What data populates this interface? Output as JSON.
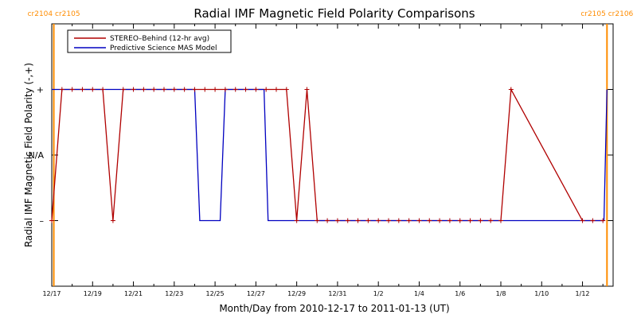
{
  "chart_data": {
    "type": "line",
    "title": "Radial IMF Magnetic Field Polarity Comparisons",
    "xlabel": "Month/Day from 2010-12-17 to 2011-01-13 (UT)",
    "ylabel": "Radial IMF Magnetic Field Polarity (-,+)",
    "xlim": [
      0,
      27.5
    ],
    "ylim": [
      -2,
      2
    ],
    "x_tick_labels": [
      "12/17",
      "12/19",
      "12/21",
      "12/23",
      "12/25",
      "12/27",
      "12/29",
      "12/31",
      "1/2",
      "1/4",
      "1/6",
      "1/8",
      "1/10",
      "1/12"
    ],
    "x_tick_values": [
      0,
      2,
      4,
      6,
      8,
      10,
      12,
      14,
      16,
      18,
      20,
      22,
      24,
      26
    ],
    "y_ticks": [
      {
        "value": 1,
        "label": "+"
      },
      {
        "value": 0,
        "label": "N/A"
      },
      {
        "value": -1,
        "label": "–"
      }
    ],
    "carrington_markers": [
      {
        "x": 0.1,
        "label": "cr2104 cr2105"
      },
      {
        "x": 27.2,
        "label": "cr2105 cr2106"
      }
    ],
    "legend_position": "top-left",
    "series": [
      {
        "name": "STEREO–Behind (12-hr avg)",
        "color": "#b00000",
        "x": [
          0.0,
          0.5,
          1.0,
          1.5,
          2.0,
          2.5,
          3.0,
          3.5,
          4.0,
          4.5,
          5.0,
          5.5,
          6.0,
          6.5,
          7.0,
          7.5,
          8.0,
          8.5,
          9.0,
          9.5,
          10.0,
          10.5,
          11.0,
          11.5,
          12.0,
          12.5,
          13.0,
          13.5,
          14.0,
          14.5,
          15.0,
          15.5,
          16.0,
          16.5,
          17.0,
          17.5,
          18.0,
          18.5,
          19.0,
          19.5,
          20.0,
          20.5,
          21.0,
          21.5,
          22.0,
          22.5,
          26.0,
          26.5,
          27.0
        ],
        "y": [
          -1,
          1,
          1,
          1,
          1,
          1,
          -1,
          1,
          1,
          1,
          1,
          1,
          1,
          1,
          1,
          1,
          1,
          1,
          1,
          1,
          1,
          1,
          1,
          1,
          -1,
          1,
          -1,
          -1,
          -1,
          -1,
          -1,
          -1,
          -1,
          -1,
          -1,
          -1,
          -1,
          -1,
          -1,
          -1,
          -1,
          -1,
          -1,
          -1,
          -1,
          1,
          -1,
          -1,
          -1
        ]
      },
      {
        "name": "Predictive Science MAS Model",
        "color": "#0000c0",
        "x": [
          0.0,
          7.0,
          7.25,
          8.25,
          8.5,
          10.4,
          10.6,
          27.05,
          27.2
        ],
        "y": [
          1,
          1,
          -1,
          -1,
          1,
          1,
          -1,
          -1,
          1
        ]
      }
    ]
  }
}
